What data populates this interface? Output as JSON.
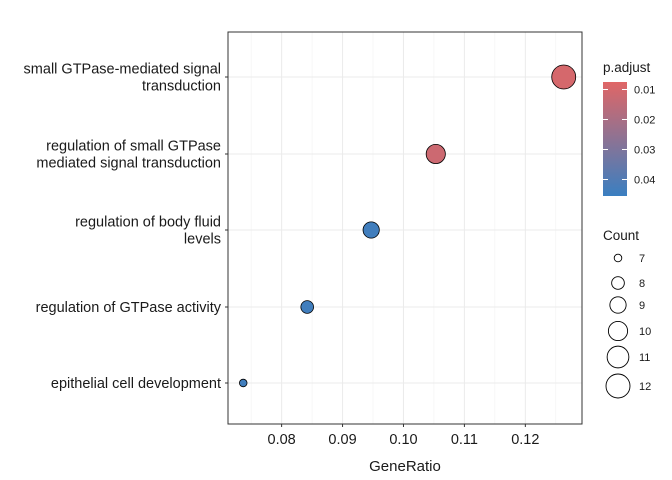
{
  "chart_data": {
    "type": "scatter",
    "xlabel": "GeneRatio",
    "ylabel": "",
    "title": "",
    "xlim": [
      0.0712,
      0.1293
    ],
    "x_ticks": [
      0.08,
      0.09,
      0.1,
      0.11,
      0.12
    ],
    "x_tick_labels": [
      "0.08",
      "0.09",
      "0.10",
      "0.11",
      "0.12"
    ],
    "categories": [
      {
        "lines": [
          "small GTPase-mediated signal",
          "transduction"
        ]
      },
      {
        "lines": [
          "regulation of small GTPase",
          "mediated signal transduction"
        ]
      },
      {
        "lines": [
          "regulation of body fluid",
          "levels"
        ]
      },
      {
        "lines": [
          "regulation of GTPase activity"
        ]
      },
      {
        "lines": [
          "epithelial cell development"
        ]
      }
    ],
    "points": [
      {
        "x": 0.1263,
        "count": 12,
        "p_adjust": 0.01
      },
      {
        "x": 0.1053,
        "count": 10,
        "p_adjust": 0.012
      },
      {
        "x": 0.0947,
        "count": 9,
        "p_adjust": 0.044
      },
      {
        "x": 0.0842,
        "count": 8,
        "p_adjust": 0.044
      },
      {
        "x": 0.0737,
        "count": 7,
        "p_adjust": 0.044
      }
    ],
    "grid": true,
    "color_legend": {
      "title": "p.adjust",
      "ticks": [
        0.01,
        0.02,
        0.03,
        0.04
      ],
      "tick_labels": [
        "0.01",
        "0.02",
        "0.03",
        "0.04"
      ],
      "range": [
        0.0075,
        0.0455
      ],
      "low_color": "#e06666",
      "high_color": "#3a7fc1"
    },
    "size_legend": {
      "title": "Count",
      "values": [
        7,
        8,
        9,
        10,
        11,
        12
      ],
      "labels": [
        "7",
        "8",
        "9",
        "10",
        "11",
        "12"
      ]
    },
    "legend_position": "right"
  }
}
